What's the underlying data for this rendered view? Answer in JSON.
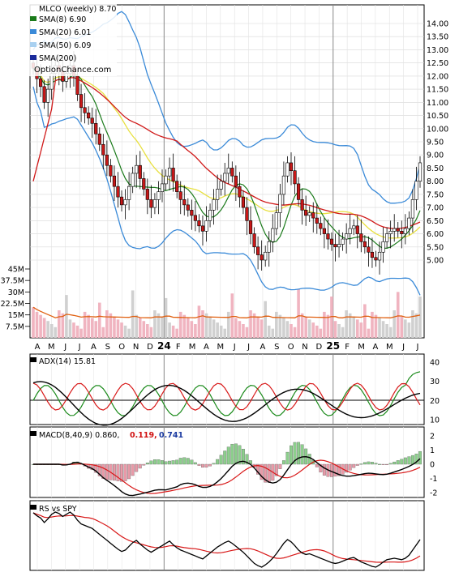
{
  "chart_data": [
    {
      "type": "candlestick",
      "title": "MLCO (weekly) 8.70",
      "watermark": "OptionChance.com",
      "legend": [
        {
          "name": "SMA(8) 6.90",
          "color": "#1a7a1a"
        },
        {
          "name": "SMA(20) 6.01",
          "color": "#3a8ad8"
        },
        {
          "name": "SMA(50) 6.09",
          "color": "#a8d0f0"
        },
        {
          "name": "SMA(200)",
          "color": "#1a2a9a"
        }
      ],
      "x_tick_labels": [
        "A",
        "M",
        "J",
        "J",
        "A",
        "S",
        "O",
        "N",
        "D",
        "24",
        "F",
        "M",
        "A",
        "M",
        "J",
        "J",
        "A",
        "S",
        "O",
        "N",
        "D",
        "25",
        "F",
        "M",
        "A",
        "M",
        "J",
        "J"
      ],
      "year_markers": [
        "24",
        "25"
      ],
      "y_ticks": [
        "5.00",
        "5.50",
        "6.00",
        "6.50",
        "7.00",
        "7.50",
        "8.00",
        "8.50",
        "9.00",
        "9.50",
        "10.00",
        "10.50",
        "11.00",
        "11.50",
        "12.00",
        "12.50",
        "13.00",
        "13.50",
        "14.00"
      ],
      "ylim": [
        4.5,
        14.3
      ],
      "close": [
        12.3,
        11.9,
        11.6,
        11.0,
        11.5,
        12.1,
        12.4,
        12.2,
        11.8,
        12.1,
        12.4,
        12.0,
        11.3,
        10.8,
        10.6,
        10.4,
        10.2,
        9.8,
        9.4,
        9.0,
        8.6,
        8.2,
        7.8,
        7.4,
        7.1,
        7.3,
        7.8,
        8.3,
        8.6,
        8.1,
        7.7,
        7.3,
        7.0,
        7.3,
        7.6,
        7.9,
        8.2,
        8.5,
        8.0,
        7.6,
        7.3,
        7.1,
        6.9,
        6.7,
        6.5,
        6.3,
        6.1,
        6.5,
        6.9,
        7.3,
        7.7,
        8.0,
        8.3,
        8.5,
        8.2,
        7.8,
        7.4,
        7.0,
        6.5,
        6.0,
        5.5,
        5.2,
        5.0,
        5.3,
        5.7,
        6.2,
        6.8,
        7.5,
        8.2,
        8.7,
        8.4,
        7.9,
        7.3,
        6.9,
        6.7,
        6.8,
        6.6,
        6.4,
        6.2,
        6.0,
        5.8,
        5.6,
        5.5,
        5.6,
        5.8,
        6.0,
        6.2,
        6.3,
        6.0,
        5.7,
        5.5,
        5.3,
        5.1,
        5.0,
        5.3,
        5.7,
        6.0,
        6.1,
        6.2,
        6.1,
        6.0,
        6.2,
        6.6,
        7.3,
        8.0,
        8.7
      ],
      "sma8_end": [
        7.2,
        7.1,
        7.0,
        6.95,
        6.92,
        6.9
      ],
      "volume_y_ticks": [
        "7.5M",
        "15M",
        "22.5M",
        "30M",
        "37.5M",
        "45M"
      ]
    },
    {
      "type": "line",
      "title": "ADX(14) 15.81",
      "y_ticks": [
        "10",
        "20",
        "30",
        "40"
      ],
      "ylim": [
        8,
        44
      ],
      "reference_lines": [
        20
      ]
    },
    {
      "type": "line",
      "title": "MACD(8,40,9) 0.860,",
      "values_shown": [
        {
          "text": "0.119,",
          "color": "#d01010"
        },
        {
          "text": "0.741",
          "color": "#1a3aa0"
        }
      ],
      "y_ticks": [
        "-2",
        "-1",
        "0",
        "1",
        "2"
      ],
      "ylim": [
        -2.4,
        2.3
      ]
    },
    {
      "type": "line",
      "title": "RS vs SPY",
      "y_ticks": []
    }
  ]
}
